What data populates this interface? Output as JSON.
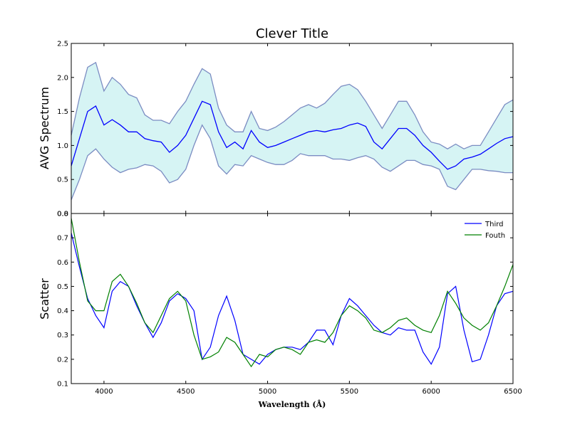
{
  "chart_data": [
    {
      "type": "area",
      "title": "Clever Title",
      "ylabel": "AVG Spectrum",
      "xlim": [
        3800,
        6500
      ],
      "ylim": [
        0.0,
        2.5
      ],
      "yticks": [
        0.0,
        0.5,
        1.0,
        1.5,
        2.0,
        2.5
      ],
      "ytick_labels": [
        "0.0",
        "0.5",
        "1.0",
        "1.5",
        "2.0",
        "2.5"
      ],
      "xticks": [
        4000,
        4500,
        5000,
        5500,
        6000,
        6500
      ],
      "colors": {
        "mean": "#0000ff",
        "band_fill": "#d6f4f4",
        "band_edge": "#7b8cc2"
      },
      "x": [
        3800,
        3850,
        3900,
        3950,
        4000,
        4050,
        4100,
        4150,
        4200,
        4250,
        4300,
        4350,
        4400,
        4450,
        4500,
        4550,
        4600,
        4650,
        4700,
        4750,
        4800,
        4850,
        4900,
        4950,
        5000,
        5050,
        5100,
        5150,
        5200,
        5250,
        5300,
        5350,
        5400,
        5450,
        5500,
        5550,
        5600,
        5650,
        5700,
        5750,
        5800,
        5850,
        5900,
        5950,
        6000,
        6050,
        6100,
        6150,
        6200,
        6250,
        6300,
        6350,
        6400,
        6450,
        6500
      ],
      "series": [
        {
          "role": "mean",
          "values": [
            0.7,
            1.1,
            1.5,
            1.58,
            1.3,
            1.38,
            1.3,
            1.2,
            1.2,
            1.1,
            1.07,
            1.05,
            0.9,
            1.0,
            1.15,
            1.4,
            1.65,
            1.6,
            1.2,
            0.97,
            1.05,
            0.95,
            1.22,
            1.05,
            0.97,
            1.0,
            1.05,
            1.1,
            1.15,
            1.2,
            1.22,
            1.2,
            1.23,
            1.25,
            1.3,
            1.33,
            1.28,
            1.05,
            0.95,
            1.1,
            1.25,
            1.25,
            1.15,
            1.0,
            0.9,
            0.77,
            0.65,
            0.7,
            0.8,
            0.83,
            0.87,
            0.95,
            1.03,
            1.1,
            1.13
          ]
        },
        {
          "role": "upper",
          "values": [
            1.15,
            1.7,
            2.15,
            2.22,
            1.8,
            2.0,
            1.9,
            1.75,
            1.7,
            1.45,
            1.37,
            1.37,
            1.32,
            1.5,
            1.65,
            1.9,
            2.13,
            2.05,
            1.55,
            1.3,
            1.2,
            1.2,
            1.5,
            1.25,
            1.22,
            1.27,
            1.35,
            1.45,
            1.55,
            1.6,
            1.55,
            1.62,
            1.75,
            1.87,
            1.9,
            1.82,
            1.65,
            1.45,
            1.25,
            1.45,
            1.65,
            1.65,
            1.45,
            1.2,
            1.05,
            1.02,
            0.95,
            1.02,
            0.95,
            1.0,
            1.0,
            1.2,
            1.4,
            1.6,
            1.67
          ]
        },
        {
          "role": "lower",
          "values": [
            0.2,
            0.5,
            0.85,
            0.95,
            0.8,
            0.68,
            0.6,
            0.65,
            0.67,
            0.72,
            0.7,
            0.62,
            0.45,
            0.5,
            0.65,
            1.0,
            1.3,
            1.1,
            0.7,
            0.58,
            0.72,
            0.7,
            0.85,
            0.8,
            0.75,
            0.72,
            0.72,
            0.78,
            0.88,
            0.85,
            0.85,
            0.85,
            0.8,
            0.8,
            0.78,
            0.82,
            0.85,
            0.8,
            0.68,
            0.62,
            0.7,
            0.78,
            0.78,
            0.72,
            0.7,
            0.65,
            0.4,
            0.35,
            0.5,
            0.65,
            0.65,
            0.63,
            0.62,
            0.6,
            0.6
          ]
        }
      ]
    },
    {
      "type": "line",
      "ylabel": "Scatter",
      "xlabel": "Wavelength (Å)",
      "xlim": [
        3800,
        6500
      ],
      "ylim": [
        0.1,
        0.8
      ],
      "yticks": [
        0.1,
        0.2,
        0.3,
        0.4,
        0.5,
        0.6,
        0.7,
        0.8
      ],
      "ytick_labels": [
        "0.1",
        "0.2",
        "0.3",
        "0.4",
        "0.5",
        "0.6",
        "0.7",
        "0.8"
      ],
      "xticks": [
        4000,
        4500,
        5000,
        5500,
        6000,
        6500
      ],
      "xtick_labels": [
        "4000",
        "4500",
        "5000",
        "5500",
        "6000",
        "6500"
      ],
      "legend": "top-right",
      "x": [
        3800,
        3850,
        3900,
        3950,
        4000,
        4050,
        4100,
        4150,
        4200,
        4250,
        4300,
        4350,
        4400,
        4450,
        4500,
        4550,
        4600,
        4650,
        4700,
        4750,
        4800,
        4850,
        4900,
        4950,
        5000,
        5050,
        5100,
        5150,
        5200,
        5250,
        5300,
        5350,
        5400,
        5450,
        5500,
        5550,
        5600,
        5650,
        5700,
        5750,
        5800,
        5850,
        5900,
        5950,
        6000,
        6050,
        6100,
        6150,
        6200,
        6250,
        6300,
        6350,
        6400,
        6450,
        6500
      ],
      "series": [
        {
          "name": "Third",
          "color": "#0000ff",
          "values": [
            0.72,
            0.58,
            0.45,
            0.38,
            0.33,
            0.48,
            0.52,
            0.5,
            0.42,
            0.35,
            0.29,
            0.35,
            0.44,
            0.47,
            0.45,
            0.4,
            0.2,
            0.25,
            0.38,
            0.46,
            0.36,
            0.22,
            0.2,
            0.18,
            0.22,
            0.24,
            0.25,
            0.25,
            0.24,
            0.27,
            0.32,
            0.32,
            0.26,
            0.38,
            0.45,
            0.42,
            0.38,
            0.34,
            0.31,
            0.3,
            0.33,
            0.32,
            0.32,
            0.23,
            0.18,
            0.25,
            0.47,
            0.5,
            0.32,
            0.19,
            0.2,
            0.3,
            0.42,
            0.47,
            0.48
          ]
        },
        {
          "name": "Fouth",
          "color": "#008000",
          "values": [
            0.78,
            0.6,
            0.44,
            0.4,
            0.4,
            0.52,
            0.55,
            0.5,
            0.43,
            0.35,
            0.31,
            0.38,
            0.45,
            0.48,
            0.44,
            0.3,
            0.2,
            0.21,
            0.23,
            0.29,
            0.27,
            0.22,
            0.17,
            0.22,
            0.21,
            0.24,
            0.25,
            0.24,
            0.22,
            0.27,
            0.28,
            0.27,
            0.31,
            0.38,
            0.42,
            0.4,
            0.37,
            0.32,
            0.31,
            0.33,
            0.36,
            0.37,
            0.34,
            0.32,
            0.31,
            0.38,
            0.48,
            0.43,
            0.37,
            0.34,
            0.32,
            0.35,
            0.42,
            0.5,
            0.59
          ]
        }
      ]
    }
  ]
}
